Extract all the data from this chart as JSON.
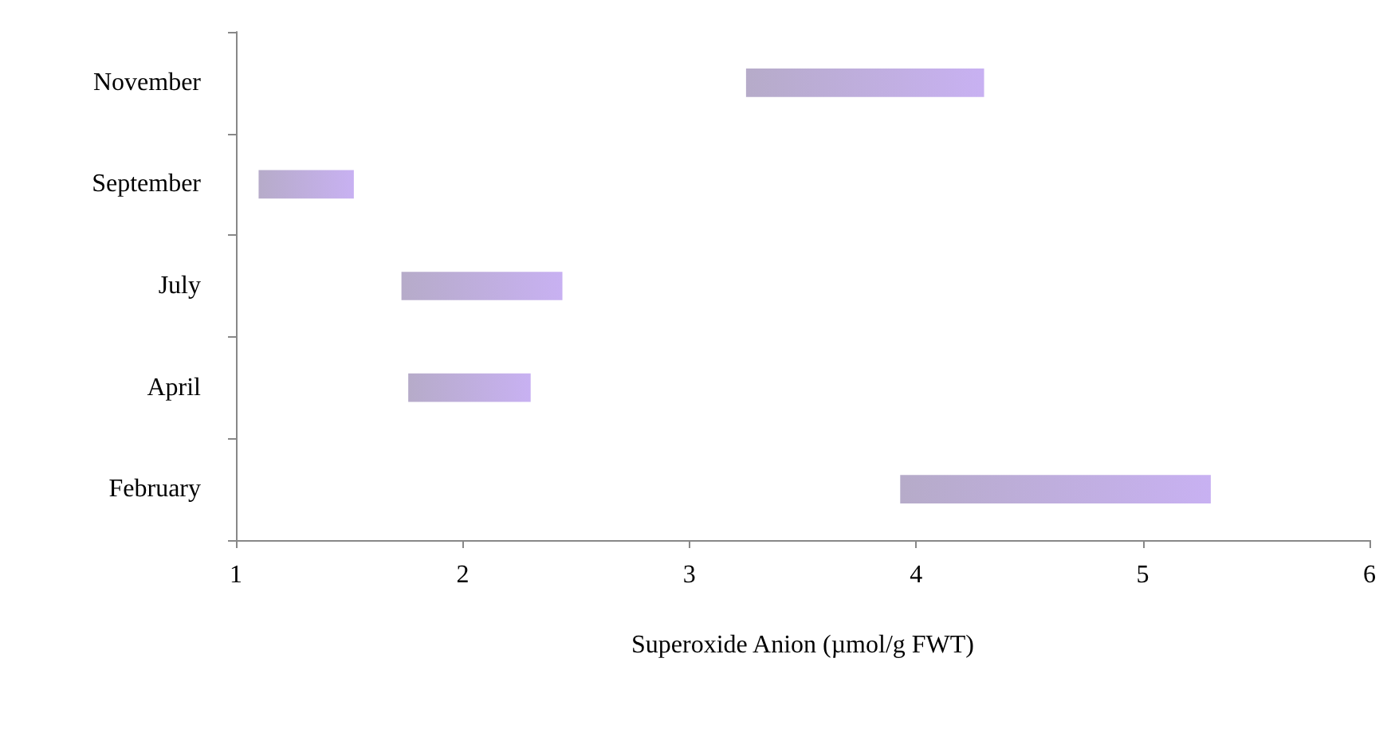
{
  "chart_data": {
    "type": "bar",
    "orientation": "horizontal",
    "xlabel": "Superoxide Anion (µmol/g FWT)",
    "categories": [
      "November",
      "September",
      "July",
      "April",
      "February"
    ],
    "base": [
      3.25,
      1.1,
      1.73,
      1.76,
      3.93
    ],
    "values": [
      1.05,
      0.42,
      0.71,
      0.54,
      1.37
    ],
    "color": "#8f7fad",
    "xlim": [
      1,
      6
    ],
    "xticks": [
      1,
      2,
      3,
      4,
      5,
      6
    ],
    "grid": false
  }
}
